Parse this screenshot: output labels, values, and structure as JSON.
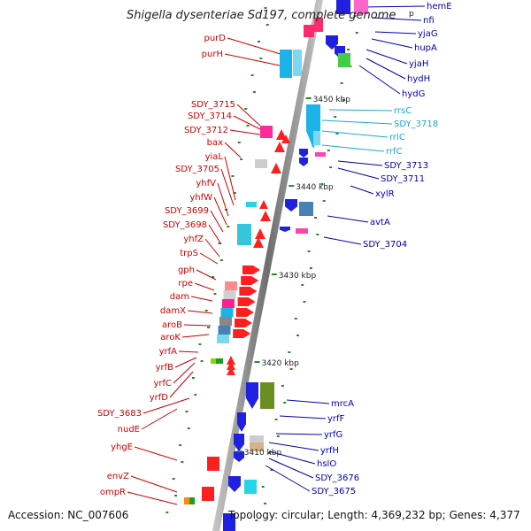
{
  "title": "Shigella dysenteriae Sd197, complete genome",
  "title_fragment": "p",
  "footer": {
    "accession": "Accession: NC_007606",
    "summary": "Topology: circular; Length: 4,369,232 bp; Genes: 4,377"
  },
  "colors": {
    "backbone": "#8a8a8a",
    "left_label": "#cc0000",
    "right_label": "#0000b0",
    "rna_label": "#1aa7d8",
    "tick": "#2a8a2a"
  },
  "scale_labels": [
    "3450 kbp",
    "3440 kbp",
    "3430 kbp",
    "3420 kbp",
    "3410 kbp"
  ],
  "left_labels": [
    "purD",
    "purH",
    "SDY_3715",
    "SDY_3714",
    "SDY_3712",
    "bax",
    "yiaL",
    "SDY_3705",
    "yhfV",
    "yhfW",
    "SDY_3699",
    "SDY_3698",
    "yhfZ",
    "trpS",
    "gph",
    "rpe",
    "dam",
    "damX",
    "aroB",
    "aroK",
    "yrfA",
    "yrfB",
    "yrfC",
    "yrfD",
    "SDY_3683",
    "nudE",
    "yhgE",
    "envZ",
    "ompR"
  ],
  "right_labels": [
    "hemE",
    "nfi",
    "yjaG",
    "hupA",
    "yjaH",
    "hydH",
    "hydG",
    "rrsC",
    "SDY_3718",
    "rrlC",
    "rrfC",
    "SDY_3713",
    "SDY_3711",
    "xylR",
    "avtA",
    "SDY_3704",
    "mrcA",
    "yrfF",
    "yrfG",
    "yrfH",
    "hslO",
    "SDY_3676",
    "SDY_3675"
  ],
  "rna_genes": [
    "rrsC",
    "SDY_3718",
    "rrlC",
    "rrfC"
  ]
}
